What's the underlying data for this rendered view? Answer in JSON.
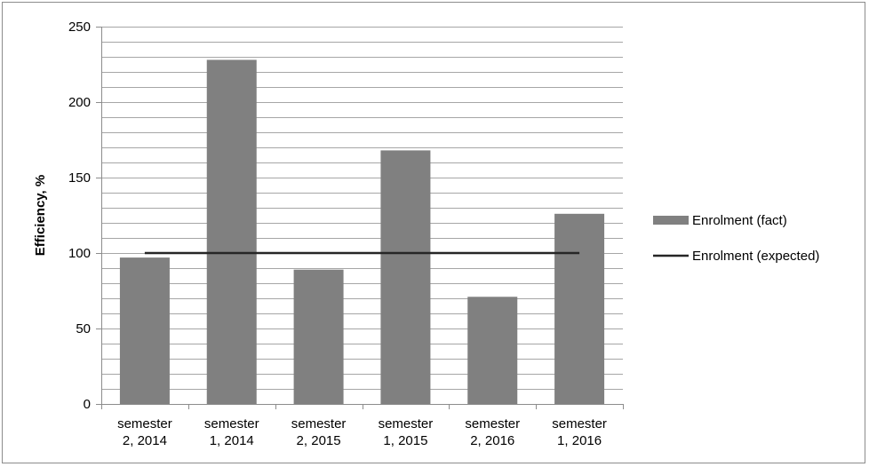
{
  "chart_data": {
    "type": "bar",
    "categories": [
      [
        "semester",
        "2, 2014"
      ],
      [
        "semester",
        "1, 2014"
      ],
      [
        "semester",
        "2, 2015"
      ],
      [
        "semester",
        "1, 2015"
      ],
      [
        "semester",
        "2, 2016"
      ],
      [
        "semester",
        "1, 2016"
      ]
    ],
    "series": [
      {
        "name": "Enrolment (fact)",
        "kind": "bar",
        "color": "#808080",
        "values": [
          97,
          228,
          89,
          168,
          71,
          126
        ]
      },
      {
        "name": "Enrolment (expected)",
        "kind": "line",
        "color": "#262626",
        "values": [
          100,
          100,
          100,
          100,
          100,
          100
        ]
      }
    ],
    "title": "",
    "xlabel": "",
    "ylabel": "Efficiency, %",
    "ylim": [
      0,
      250
    ],
    "yticks": [
      0,
      50,
      100,
      150,
      200,
      250
    ],
    "minor_step": 10,
    "grid": true,
    "legend_position": "right"
  }
}
